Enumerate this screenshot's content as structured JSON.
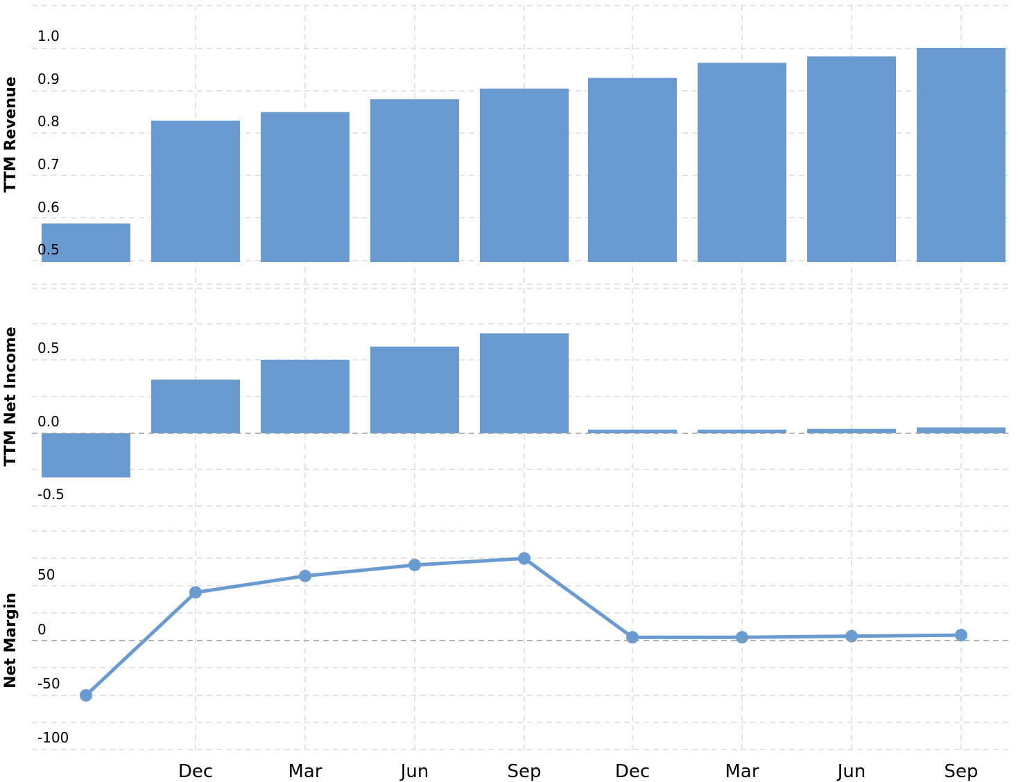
{
  "chart_data": [
    {
      "type": "bar",
      "ylabel": "TTM Revenue",
      "ylim": [
        0.5,
        1.05
      ],
      "yticks": [
        "0.5",
        "0.6",
        "0.7",
        "0.8",
        "0.9",
        "1.0"
      ],
      "values": [
        0.59,
        0.83,
        0.85,
        0.88,
        0.905,
        0.93,
        0.965,
        0.98,
        1.0
      ],
      "color": "#6a9bd0"
    },
    {
      "type": "bar",
      "ylabel": "TTM Net Income",
      "ylim": [
        -0.5,
        1.0
      ],
      "yticks": [
        "-0.5",
        "0.0",
        "0.5"
      ],
      "values": [
        -0.3,
        0.365,
        0.5,
        0.59,
        0.68,
        0.025,
        0.025,
        0.03,
        0.04
      ],
      "color": "#6a9bd0"
    },
    {
      "type": "line",
      "ylabel": "Net Margin",
      "ylim": [
        -100,
        100
      ],
      "yticks": [
        "-100",
        "-50",
        "0",
        "50"
      ],
      "values": [
        -50,
        44,
        59,
        69,
        75,
        3,
        3,
        4,
        5
      ],
      "color": "#6a9bd0"
    }
  ],
  "x_ticks": [
    "Dec",
    "Mar",
    "Jun",
    "Sep",
    "Dec",
    "Mar",
    "Jun",
    "Sep"
  ]
}
